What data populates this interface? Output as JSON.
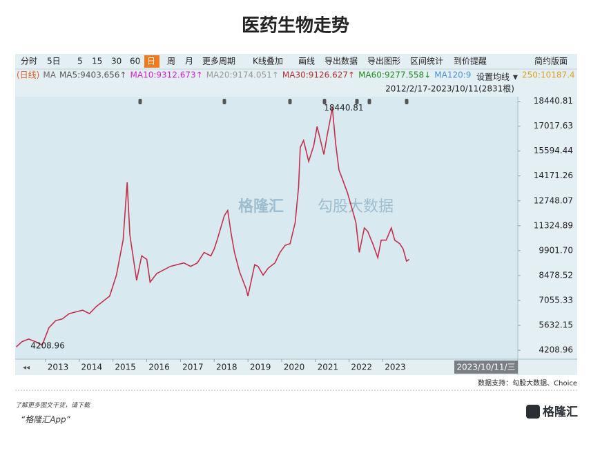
{
  "chart_data": {
    "type": "line",
    "title": "医药生物走势",
    "toolbar": [
      "分时",
      "5日",
      "5",
      "15",
      "30",
      "60",
      "日",
      "周",
      "月",
      "更多周期",
      "K线叠加",
      "画线",
      "导出数据",
      "导出图形",
      "区间统计",
      "到价提醒",
      "简约版面"
    ],
    "ma_legend": [
      {
        "text": "(日线)",
        "color": "#e0602a"
      },
      {
        "text": "MA",
        "color": "#666666"
      },
      {
        "text": "MA5:9403.656↑",
        "color": "#555555"
      },
      {
        "text": "MA10:9312.673↑",
        "color": "#d020d0"
      },
      {
        "text": "MA20:9174.051↑",
        "color": "#999999"
      },
      {
        "text": "MA30:9126.627↑",
        "color": "#b03030"
      },
      {
        "text": "MA60:9277.558↓",
        "color": "#208a20"
      },
      {
        "text": "MA120:9",
        "color": "#4a90d9"
      },
      {
        "text": "250:10187.4",
        "color": "#e0a020"
      }
    ],
    "ma_setting": "设置均线",
    "date_range": "2012/2/17-2023/10/11(2831根)",
    "current_date": "2023/10/11/三",
    "watermark": "勾股大数据",
    "source": "数据支持：勾股大数据、Choice",
    "footer_note": "了解更多图文干货，请下载",
    "footer_app": "“格隆汇App”",
    "logo": "格隆汇",
    "annotations": [
      {
        "text": "18440.81",
        "x": 2021.05,
        "y": 18440.81
      },
      {
        "text": "4208.96",
        "x": 2012.35,
        "y": 4208.96
      }
    ],
    "x": [
      2012.13,
      2012.3,
      2012.5,
      2012.7,
      2012.9,
      2013.0,
      2013.1,
      2013.3,
      2013.5,
      2013.7,
      2013.9,
      2014.1,
      2014.3,
      2014.5,
      2014.7,
      2014.9,
      2015.1,
      2015.3,
      2015.42,
      2015.5,
      2015.6,
      2015.7,
      2015.85,
      2016.0,
      2016.1,
      2016.3,
      2016.5,
      2016.7,
      2016.9,
      2017.1,
      2017.3,
      2017.5,
      2017.7,
      2017.9,
      2018.0,
      2018.1,
      2018.3,
      2018.4,
      2018.5,
      2018.6,
      2018.75,
      2018.95,
      2019.0,
      2019.2,
      2019.3,
      2019.45,
      2019.6,
      2019.8,
      2019.95,
      2020.1,
      2020.25,
      2020.4,
      2020.5,
      2020.55,
      2020.65,
      2020.8,
      2020.95,
      2021.05,
      2021.15,
      2021.25,
      2021.35,
      2021.45,
      2021.5,
      2021.6,
      2021.7,
      2021.8,
      2021.95,
      2022.1,
      2022.2,
      2022.3,
      2022.45,
      2022.55,
      2022.7,
      2022.85,
      2022.95,
      2023.1,
      2023.25,
      2023.35,
      2023.5,
      2023.6,
      2023.7,
      2023.78
    ],
    "series": [
      {
        "name": "医药生物",
        "color": "#c0304a",
        "values": [
          4400,
          4700,
          4850,
          4700,
          4500,
          5000,
          5500,
          5900,
          6000,
          6300,
          6400,
          6500,
          6300,
          6700,
          7000,
          7300,
          8500,
          10500,
          13800,
          10800,
          9500,
          8200,
          9600,
          9400,
          8100,
          8600,
          8800,
          9000,
          9100,
          9200,
          9000,
          9200,
          9800,
          9600,
          10000,
          10600,
          11900,
          12200,
          10900,
          9800,
          8700,
          7700,
          7300,
          9100,
          9000,
          8500,
          8900,
          9200,
          9800,
          10200,
          10300,
          11500,
          13500,
          15800,
          16200,
          15000,
          15900,
          17000,
          16200,
          15400,
          16500,
          17500,
          18100,
          16000,
          14500,
          14000,
          13200,
          12200,
          11500,
          9800,
          11200,
          11000,
          10300,
          9500,
          10500,
          10500,
          11200,
          10500,
          10300,
          10000,
          9300,
          9400
        ]
      }
    ],
    "xlim": [
      2012.1,
      2027.0
    ],
    "xticks": [
      2013,
      2014,
      2015,
      2016,
      2017,
      2018,
      2019,
      2020,
      2021,
      2022,
      2023
    ],
    "ylim": [
      3700,
      18700
    ],
    "yticks": [
      {
        "value": 4208.96,
        "label": "4208.96"
      },
      {
        "value": 5632.15,
        "label": "5632.15"
      },
      {
        "value": 7055.33,
        "label": "7055.33"
      },
      {
        "value": 8478.52,
        "label": "8478.52"
      },
      {
        "value": 9901.7,
        "label": "9901.70"
      },
      {
        "value": 11324.89,
        "label": "11324.89"
      },
      {
        "value": 12748.07,
        "label": "12748.07"
      },
      {
        "value": 14171.26,
        "label": "14171.26"
      },
      {
        "value": 15594.44,
        "label": "15594.44"
      },
      {
        "value": 17017.63,
        "label": "17017.63"
      },
      {
        "value": 18440.81,
        "label": "18440.81"
      }
    ]
  }
}
